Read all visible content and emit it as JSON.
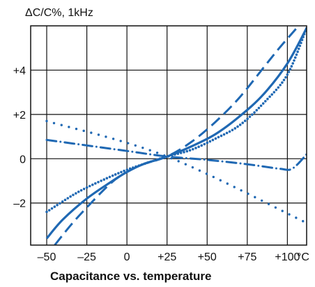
{
  "chart_data": {
    "type": "line",
    "title": "Capacitance vs. temperature",
    "ylabel": "ΔC/C%, 1kHz",
    "xlabel": "°C",
    "xlim": [
      -60,
      112
    ],
    "ylim": [
      -3.9,
      6.0
    ],
    "x_ticks": [
      -50,
      -25,
      0,
      25,
      50,
      75,
      100
    ],
    "x_tick_labels": [
      "–50",
      "–25",
      "0",
      "+25",
      "+50",
      "+75",
      "+100"
    ],
    "y_ticks": [
      -2,
      0,
      2,
      4
    ],
    "y_tick_labels": [
      "–2",
      "0",
      "+2",
      "+4"
    ],
    "grid": true,
    "series_color": "#1f68b3",
    "series": [
      {
        "style": "solid",
        "x": [
          -50,
          -40,
          -25,
          -10,
          0,
          10,
          25,
          40,
          55,
          70,
          85,
          100,
          112
        ],
        "y": [
          -3.6,
          -2.75,
          -1.8,
          -1.05,
          -0.6,
          -0.25,
          0.1,
          0.55,
          1.1,
          1.9,
          2.9,
          4.3,
          5.9
        ]
      },
      {
        "style": "dashed",
        "x": [
          -45,
          -35,
          -25,
          -10,
          0,
          10,
          25,
          40,
          55,
          70,
          85,
          95,
          107
        ],
        "y": [
          -3.9,
          -3.0,
          -2.2,
          -1.1,
          -0.6,
          -0.25,
          0.1,
          0.75,
          1.65,
          2.75,
          4.1,
          5.0,
          6.0
        ]
      },
      {
        "style": "dotted",
        "x": [
          -50,
          -35,
          -25,
          -10,
          0,
          10,
          25,
          40,
          55,
          70,
          85,
          100,
          112
        ],
        "y": [
          -2.4,
          -1.7,
          -1.3,
          -0.8,
          -0.5,
          -0.25,
          0.1,
          0.4,
          0.9,
          1.5,
          2.5,
          3.8,
          5.9
        ]
      },
      {
        "style": "sparse-dotted",
        "x": [
          -50,
          25,
          112
        ],
        "y": [
          1.7,
          0.1,
          -2.9
        ]
      },
      {
        "style": "dash-dot",
        "x": [
          -50,
          -25,
          0,
          25,
          50,
          75,
          95,
          103,
          112
        ],
        "y": [
          0.85,
          0.6,
          0.35,
          0.1,
          -0.05,
          -0.25,
          -0.45,
          -0.45,
          0.2
        ]
      }
    ]
  }
}
